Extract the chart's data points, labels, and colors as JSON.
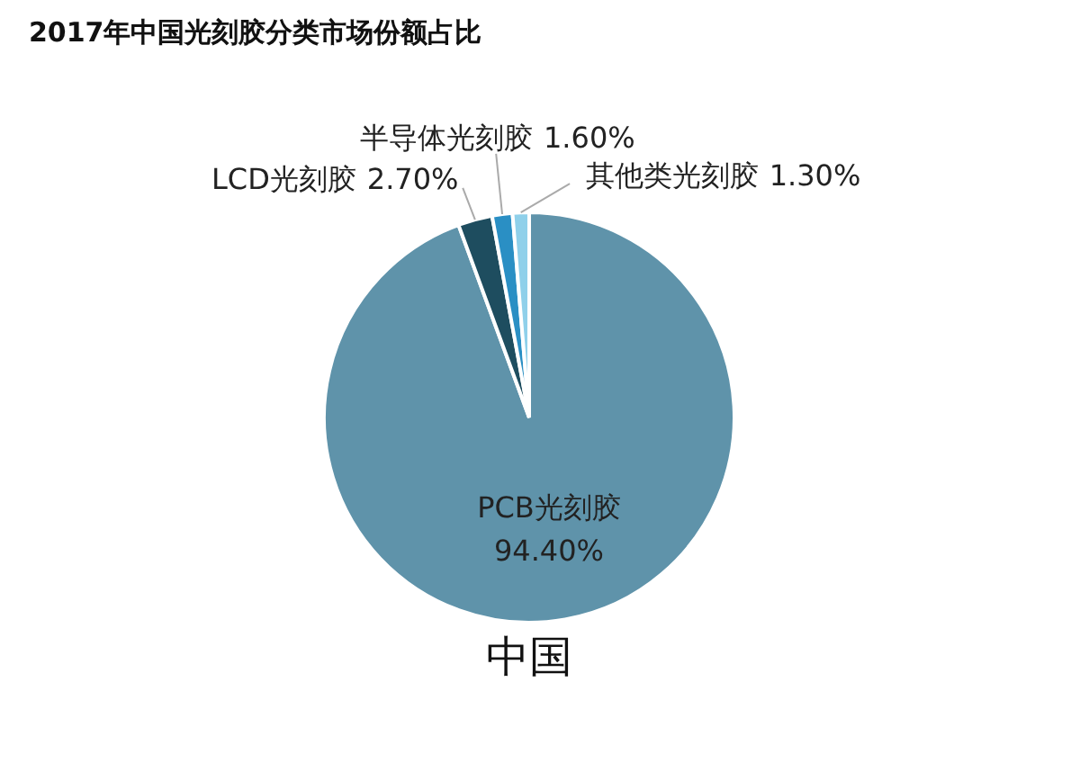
{
  "chart_data": {
    "type": "pie",
    "title": "2017年中国光刻胶分类市场份额占比",
    "xlabel": "中国",
    "categories": [
      "PCB光刻胶",
      "LCD光刻胶",
      "半导体光刻胶",
      "其他类光刻胶"
    ],
    "values": [
      94.4,
      2.7,
      1.6,
      1.3
    ],
    "value_labels": [
      "94.40%",
      "2.70%",
      "1.60%",
      "1.30%"
    ],
    "colors": [
      "#5f93aa",
      "#1e4d5f",
      "#2a8fc4",
      "#8fd0ea"
    ]
  }
}
